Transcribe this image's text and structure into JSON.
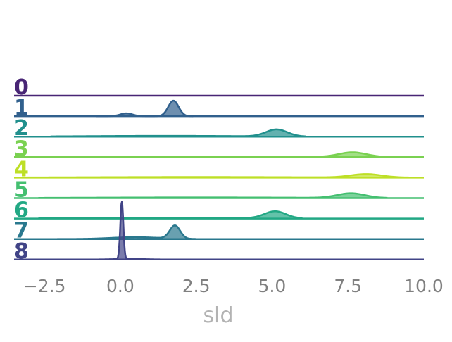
{
  "chart_data": {
    "type": "area",
    "title": "",
    "xlabel": "sld",
    "ylabel": "",
    "xlim": [
      -3.5,
      10.0
    ],
    "xticks": [
      -2.5,
      0.0,
      2.5,
      5.0,
      7.5,
      10.0
    ],
    "xtick_labels": [
      "−2.5",
      "0.0",
      "2.5",
      "5.0",
      "7.5",
      "10.0"
    ],
    "grid": false,
    "legend": "none",
    "series": [
      {
        "name": "0",
        "color": "#482575",
        "range": [
          -3.5,
          10.0
        ],
        "components": []
      },
      {
        "name": "1",
        "color": "#31608d",
        "range": [
          -0.8,
          2.4
        ],
        "components": [
          {
            "mu": 1.75,
            "sigma": 0.17,
            "amp": 1.0
          },
          {
            "mu": 0.2,
            "sigma": 0.2,
            "amp": 0.18
          }
        ]
      },
      {
        "name": "2",
        "color": "#21908d",
        "range": [
          -2.3,
          6.1
        ],
        "components": [
          {
            "mu": 5.15,
            "sigma": 0.35,
            "amp": 0.45
          },
          {
            "mu": 1.5,
            "sigma": 2.5,
            "amp": 0.05
          }
        ]
      },
      {
        "name": "3",
        "color": "#7ad151",
        "range": [
          -2.7,
          8.8
        ],
        "components": [
          {
            "mu": 7.65,
            "sigma": 0.45,
            "amp": 0.3
          },
          {
            "mu": 2.0,
            "sigma": 3.5,
            "amp": 0.04
          }
        ]
      },
      {
        "name": "4",
        "color": "#bddf26",
        "range": [
          -3.1,
          9.6
        ],
        "components": [
          {
            "mu": 8.1,
            "sigma": 0.5,
            "amp": 0.22
          },
          {
            "mu": 2.5,
            "sigma": 3.5,
            "amp": 0.04
          }
        ]
      },
      {
        "name": "5",
        "color": "#44bf70",
        "range": [
          -2.7,
          8.8
        ],
        "components": [
          {
            "mu": 7.6,
            "sigma": 0.45,
            "amp": 0.3
          },
          {
            "mu": 2.5,
            "sigma": 3.5,
            "amp": 0.04
          }
        ]
      },
      {
        "name": "6",
        "color": "#22a884",
        "range": [
          -2.7,
          6.0
        ],
        "components": [
          {
            "mu": 5.1,
            "sigma": 0.35,
            "amp": 0.45
          },
          {
            "mu": 1.5,
            "sigma": 2.5,
            "amp": 0.06
          }
        ]
      },
      {
        "name": "7",
        "color": "#2a788e",
        "range": [
          -3.0,
          2.5
        ],
        "components": [
          {
            "mu": 1.8,
            "sigma": 0.17,
            "amp": 0.85
          },
          {
            "mu": 0.5,
            "sigma": 0.8,
            "amp": 0.12
          }
        ]
      },
      {
        "name": "8",
        "color": "#414487",
        "range": [
          -2.8,
          2.3
        ],
        "components": [
          {
            "mu": 0.05,
            "sigma": 0.05,
            "amp": 3.7
          },
          {
            "mu": 0.3,
            "sigma": 0.5,
            "amp": 0.04
          }
        ]
      }
    ]
  }
}
